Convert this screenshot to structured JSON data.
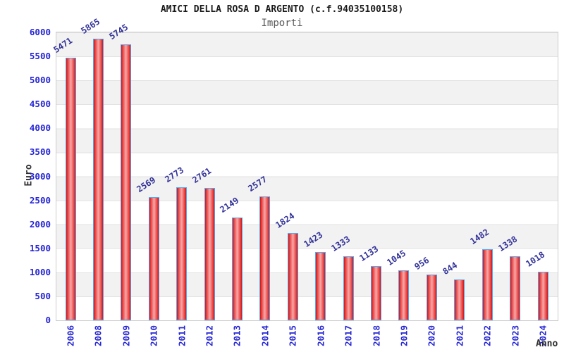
{
  "chart_data": {
    "type": "bar",
    "title": "AMICI DELLA ROSA D ARGENTO (c.f.94035100158)",
    "subtitle": "Importi",
    "ylabel": "Euro",
    "xlabel": "Anno",
    "categories": [
      "2006",
      "2008",
      "2009",
      "2010",
      "2011",
      "2012",
      "2013",
      "2014",
      "2015",
      "2016",
      "2017",
      "2018",
      "2019",
      "2020",
      "2021",
      "2022",
      "2023",
      "2024"
    ],
    "values": [
      5471,
      5865,
      5745,
      2569,
      2773,
      2761,
      2149,
      2577,
      1824,
      1423,
      1333,
      1133,
      1045,
      956,
      844,
      1482,
      1338,
      1018
    ],
    "ylim": [
      0,
      6000
    ],
    "yticks": [
      0,
      500,
      1000,
      1500,
      2000,
      2500,
      3000,
      3500,
      4000,
      4500,
      5000,
      5500,
      6000
    ],
    "legend": "none",
    "grid": "horizontal gridlines every 500 with alternating gray/white bands",
    "value_labels": "rotated above each bar",
    "colors": {
      "title_text": "#1a1a1a",
      "subtitle_text": "#5a5a5a",
      "tick_text": "#2525d4",
      "value_text": "#333399",
      "axis_label_text": "#2e2e2e",
      "bar_edge": "#d21414",
      "bar_mid": "#f7a8a8",
      "bar_border": "#57a7ef",
      "stripe": "#f2f2f2",
      "gridline": "#e2e2e2",
      "plot_border": "#cccccc"
    }
  }
}
